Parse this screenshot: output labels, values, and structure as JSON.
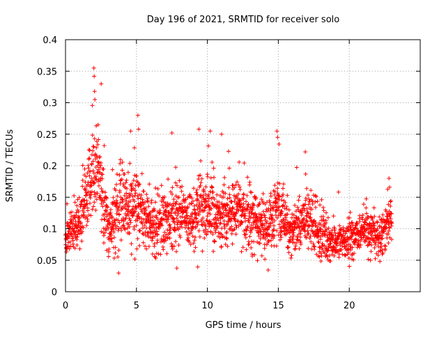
{
  "chart_data": {
    "type": "scatter",
    "title": "Day 196 of 2021, SRMTID for receiver solo",
    "xlabel": "GPS time / hours",
    "ylabel": "SRMTID / TECUs",
    "xlim": [
      0,
      25
    ],
    "ylim": [
      0,
      0.4
    ],
    "x_ticks": [
      0,
      5,
      10,
      15,
      20
    ],
    "x_tick_labels": [
      "0",
      "5",
      "10",
      "15",
      "20"
    ],
    "y_ticks": [
      0,
      0.05,
      0.1,
      0.15,
      0.2,
      0.25,
      0.3,
      0.35,
      0.4
    ],
    "y_tick_labels": [
      "0",
      "0.05",
      "0.1",
      "0.15",
      "0.2",
      "0.25",
      "0.3",
      "0.35",
      "0.4"
    ],
    "grid": true,
    "marker": "+",
    "marker_color": "#ff0000",
    "series": [
      {
        "name": "SRMTID",
        "x_range": [
          0,
          23
        ],
        "sample_profile": {
          "x": [
            0.0,
            0.5,
            1.0,
            1.5,
            2.0,
            2.5,
            3.0,
            3.5,
            4.0,
            4.5,
            5.0,
            5.5,
            6.0,
            7.0,
            8.0,
            9.0,
            9.5,
            10.0,
            10.5,
            11.0,
            12.0,
            13.0,
            14.0,
            14.5,
            15.0,
            15.5,
            16.0,
            16.5,
            17.0,
            17.5,
            18.0,
            18.5,
            19.0,
            19.5,
            20.0,
            20.5,
            21.0,
            21.5,
            22.0,
            22.5,
            23.0
          ],
          "mean": [
            0.08,
            0.1,
            0.11,
            0.16,
            0.2,
            0.17,
            0.1,
            0.12,
            0.14,
            0.13,
            0.14,
            0.12,
            0.1,
            0.11,
            0.12,
            0.11,
            0.14,
            0.13,
            0.12,
            0.12,
            0.13,
            0.12,
            0.1,
            0.11,
            0.13,
            0.1,
            0.1,
            0.11,
            0.12,
            0.1,
            0.09,
            0.08,
            0.08,
            0.08,
            0.08,
            0.09,
            0.1,
            0.09,
            0.09,
            0.1,
            0.12
          ],
          "spread": [
            0.02,
            0.03,
            0.03,
            0.05,
            0.06,
            0.05,
            0.03,
            0.05,
            0.05,
            0.04,
            0.05,
            0.04,
            0.04,
            0.04,
            0.04,
            0.04,
            0.05,
            0.05,
            0.04,
            0.04,
            0.04,
            0.04,
            0.035,
            0.04,
            0.05,
            0.035,
            0.035,
            0.035,
            0.04,
            0.035,
            0.03,
            0.03,
            0.025,
            0.025,
            0.025,
            0.025,
            0.025,
            0.025,
            0.025,
            0.03,
            0.03
          ]
        },
        "peaks": [
          {
            "x": 2.0,
            "y": 0.355
          },
          {
            "x": 2.02,
            "y": 0.342
          },
          {
            "x": 2.05,
            "y": 0.318
          },
          {
            "x": 2.07,
            "y": 0.305
          },
          {
            "x": 2.3,
            "y": 0.265
          },
          {
            "x": 5.1,
            "y": 0.28
          },
          {
            "x": 5.15,
            "y": 0.258
          },
          {
            "x": 4.6,
            "y": 0.255
          },
          {
            "x": 7.5,
            "y": 0.252
          },
          {
            "x": 9.4,
            "y": 0.258
          },
          {
            "x": 10.2,
            "y": 0.255
          },
          {
            "x": 11.0,
            "y": 0.25
          },
          {
            "x": 14.9,
            "y": 0.255
          },
          {
            "x": 14.95,
            "y": 0.245
          },
          {
            "x": 16.9,
            "y": 0.222
          },
          {
            "x": 22.8,
            "y": 0.18
          }
        ],
        "points_estimate": 2300
      }
    ]
  }
}
